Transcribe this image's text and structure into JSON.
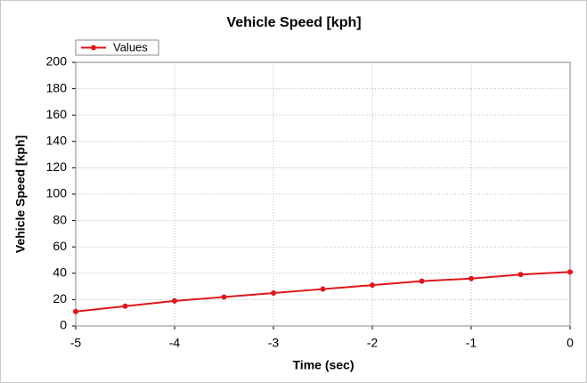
{
  "chart_data": {
    "type": "line",
    "title": "Vehicle Speed [kph]",
    "x_label": "Time (sec)",
    "y_label": "Vehicle Speed [kph]",
    "x": [
      -5,
      -4.5,
      -4,
      -3.5,
      -3,
      -2.5,
      -2,
      -1.5,
      -1,
      -0.5,
      0
    ],
    "series": [
      {
        "name": "Values",
        "color": "#e0161b",
        "values": [
          11,
          15,
          19,
          22,
          25,
          28,
          31,
          34,
          36,
          39,
          41
        ]
      }
    ],
    "xlim": [
      -5,
      0
    ],
    "xticks": [
      -5,
      -4,
      -3,
      -2,
      -1,
      0
    ],
    "ylim": [
      0,
      200
    ],
    "yticks": [
      0,
      20,
      40,
      60,
      80,
      100,
      120,
      140,
      160,
      180,
      200
    ],
    "grid": true,
    "legend": "top-left"
  }
}
